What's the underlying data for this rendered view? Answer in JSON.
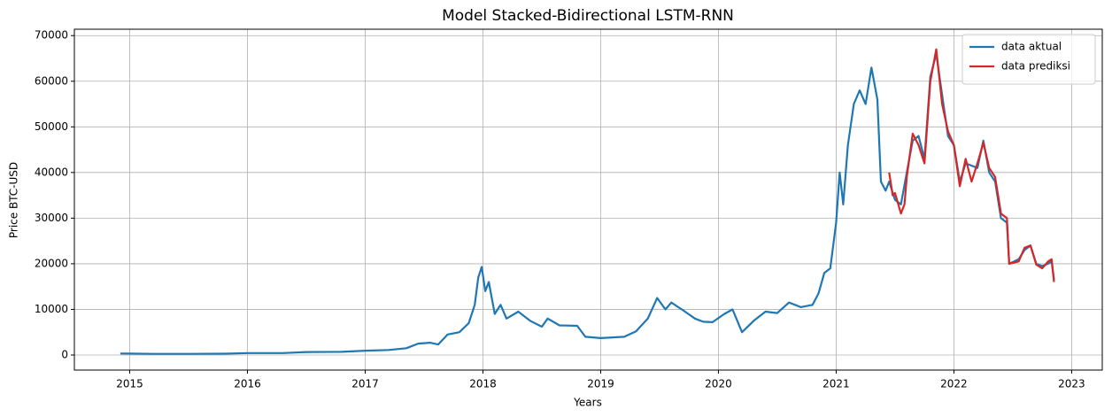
{
  "chart_data": {
    "type": "line",
    "title": "Model Stacked-Bidirectional LSTM-RNN",
    "xlabel": "Years",
    "ylabel": "Price BTC-USD",
    "xlim": [
      2014.53,
      2023.26
    ],
    "xticks": [
      2015,
      2016,
      2017,
      2018,
      2019,
      2020,
      2021,
      2022,
      2023
    ],
    "ylim": [
      -3300,
      71400
    ],
    "yticks": [
      0,
      10000,
      20000,
      30000,
      40000,
      50000,
      60000,
      70000
    ],
    "grid": true,
    "legend": "upper right",
    "series": [
      {
        "name": "data aktual",
        "color": "#1f77b4",
        "x": [
          2014.92,
          2015.0,
          2015.2,
          2015.5,
          2015.8,
          2016.0,
          2016.3,
          2016.5,
          2016.8,
          2017.0,
          2017.2,
          2017.35,
          2017.45,
          2017.55,
          2017.62,
          2017.7,
          2017.8,
          2017.88,
          2017.93,
          2017.96,
          2017.99,
          2018.02,
          2018.05,
          2018.1,
          2018.15,
          2018.2,
          2018.3,
          2018.4,
          2018.5,
          2018.55,
          2018.65,
          2018.8,
          2018.87,
          2019.0,
          2019.2,
          2019.3,
          2019.4,
          2019.48,
          2019.55,
          2019.6,
          2019.7,
          2019.8,
          2019.87,
          2019.95,
          2020.05,
          2020.12,
          2020.2,
          2020.3,
          2020.4,
          2020.5,
          2020.6,
          2020.7,
          2020.8,
          2020.85,
          2020.9,
          2020.95,
          2021.0,
          2021.03,
          2021.06,
          2021.1,
          2021.15,
          2021.2,
          2021.25,
          2021.3,
          2021.35,
          2021.38,
          2021.42,
          2021.45,
          2021.5,
          2021.55,
          2021.6,
          2021.65,
          2021.7,
          2021.75,
          2021.8,
          2021.85,
          2021.9,
          2021.95,
          2022.0,
          2022.05,
          2022.1,
          2022.2,
          2022.25,
          2022.3,
          2022.35,
          2022.4,
          2022.45,
          2022.47,
          2022.55,
          2022.6,
          2022.65,
          2022.7,
          2022.75,
          2022.8,
          2022.83,
          2022.85
        ],
        "values": [
          320,
          300,
          250,
          260,
          280,
          420,
          430,
          650,
          700,
          950,
          1100,
          1500,
          2500,
          2700,
          2300,
          4500,
          5000,
          7000,
          11000,
          17000,
          19300,
          14000,
          16000,
          9000,
          11000,
          8000,
          9500,
          7500,
          6200,
          8000,
          6500,
          6400,
          4000,
          3700,
          4000,
          5200,
          8000,
          12500,
          10000,
          11500,
          9800,
          8000,
          7300,
          7200,
          9000,
          10000,
          5000,
          7500,
          9500,
          9200,
          11500,
          10500,
          11000,
          13500,
          18000,
          19000,
          29000,
          40000,
          33000,
          46000,
          55000,
          58000,
          55000,
          63000,
          56000,
          38000,
          36000,
          38000,
          34000,
          33000,
          40000,
          47000,
          48000,
          43000,
          61000,
          66000,
          57000,
          48000,
          46000,
          38000,
          42000,
          41000,
          47000,
          40000,
          38000,
          30000,
          29000,
          20000,
          21000,
          23000,
          24000,
          20000,
          19500,
          20000,
          20500,
          16500
        ]
      },
      {
        "name": "data prediksi",
        "color": "#d62728",
        "x": [
          2021.45,
          2021.48,
          2021.5,
          2021.55,
          2021.58,
          2021.6,
          2021.65,
          2021.7,
          2021.75,
          2021.8,
          2021.85,
          2021.9,
          2021.95,
          2022.0,
          2022.05,
          2022.1,
          2022.15,
          2022.2,
          2022.25,
          2022.3,
          2022.35,
          2022.4,
          2022.45,
          2022.47,
          2022.55,
          2022.6,
          2022.65,
          2022.7,
          2022.75,
          2022.8,
          2022.83,
          2022.85
        ],
        "values": [
          40000,
          35000,
          35500,
          31000,
          33000,
          39000,
          48500,
          46000,
          42000,
          60000,
          67000,
          55000,
          49000,
          46000,
          37000,
          43000,
          38000,
          42000,
          46500,
          41000,
          39000,
          31000,
          30000,
          20000,
          20500,
          23500,
          24000,
          19800,
          19000,
          20500,
          21000,
          16000
        ]
      }
    ]
  }
}
